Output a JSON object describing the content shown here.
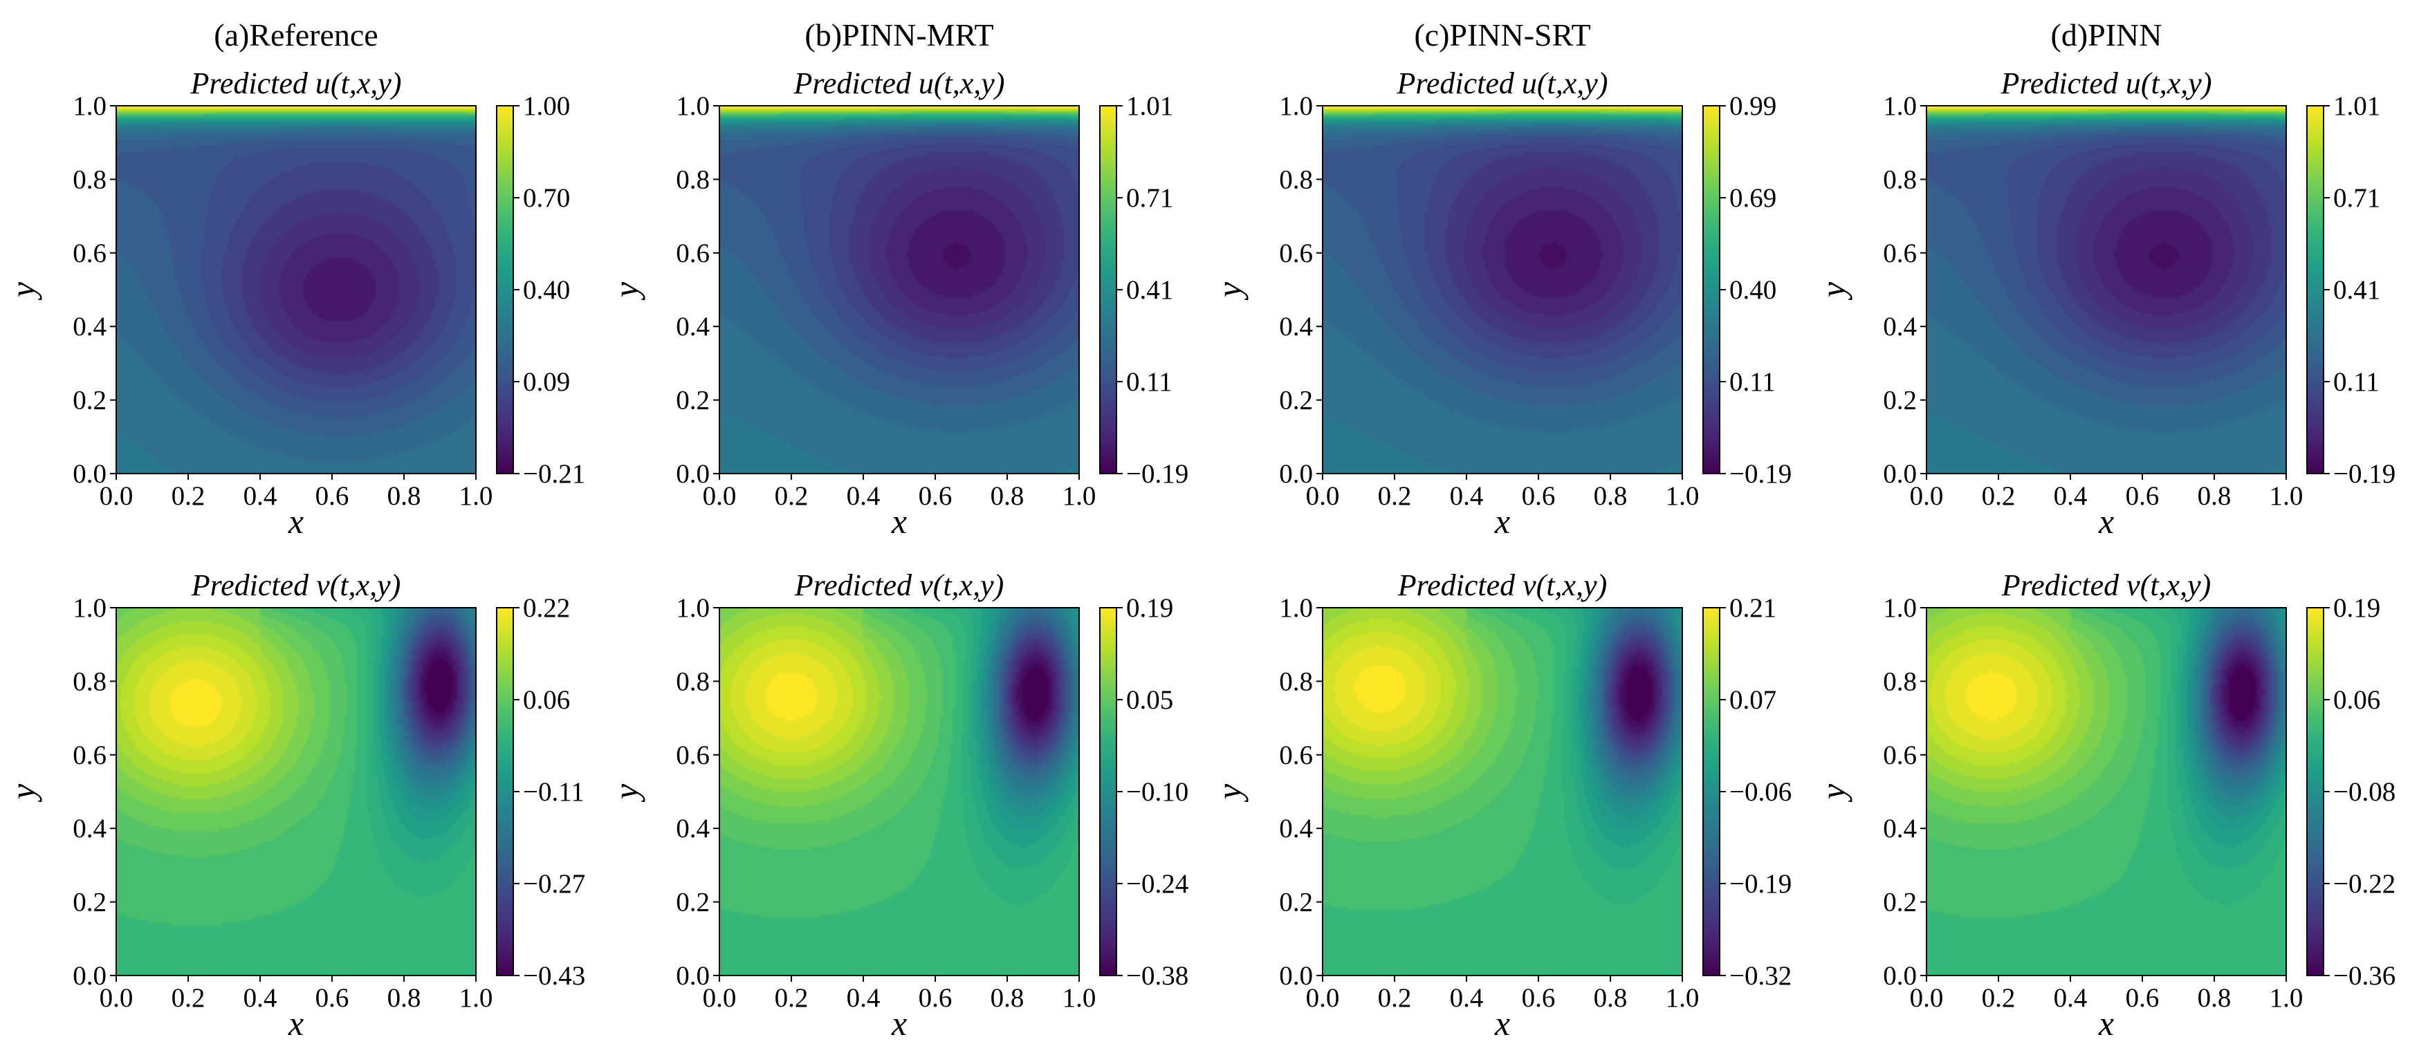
{
  "chart_data": [
    {
      "type": "heatmap",
      "column": "(a)Reference",
      "title": "Predicted u(t,x,y)",
      "field": "u",
      "xlabel": "x",
      "ylabel": "y",
      "xlim": [
        0.0,
        1.0
      ],
      "ylim": [
        0.0,
        1.0
      ],
      "xticks": [
        "0.0",
        "0.2",
        "0.4",
        "0.6",
        "0.8",
        "1.0"
      ],
      "yticks": [
        "0.0",
        "0.2",
        "0.4",
        "0.6",
        "0.8",
        "1.0"
      ],
      "colorbar": {
        "colormap": "viridis",
        "min": -0.21,
        "max": 1.0,
        "ticks": [
          "−0.21",
          "0.09",
          "0.40",
          "0.70",
          "1.00"
        ]
      },
      "features": [
        {
          "kind": "min",
          "x": 0.62,
          "y": 0.47
        }
      ]
    },
    {
      "type": "heatmap",
      "column": "(b)PINN-MRT",
      "title": "Predicted u(t,x,y)",
      "field": "u",
      "xlabel": "x",
      "ylabel": "y",
      "xlim": [
        0.0,
        1.0
      ],
      "ylim": [
        0.0,
        1.0
      ],
      "xticks": [
        "0.0",
        "0.2",
        "0.4",
        "0.6",
        "0.8",
        "1.0"
      ],
      "yticks": [
        "0.0",
        "0.2",
        "0.4",
        "0.6",
        "0.8",
        "1.0"
      ],
      "colorbar": {
        "colormap": "viridis",
        "min": -0.19,
        "max": 1.01,
        "ticks": [
          "−0.19",
          "0.11",
          "0.41",
          "0.71",
          "1.01"
        ]
      },
      "features": [
        {
          "kind": "min",
          "x": 0.66,
          "y": 0.56
        }
      ]
    },
    {
      "type": "heatmap",
      "column": "(c)PINN-SRT",
      "title": "Predicted u(t,x,y)",
      "field": "u",
      "xlabel": "x",
      "ylabel": "y",
      "xlim": [
        0.0,
        1.0
      ],
      "ylim": [
        0.0,
        1.0
      ],
      "xticks": [
        "0.0",
        "0.2",
        "0.4",
        "0.6",
        "0.8",
        "1.0"
      ],
      "yticks": [
        "0.0",
        "0.2",
        "0.4",
        "0.6",
        "0.8",
        "1.0"
      ],
      "colorbar": {
        "colormap": "viridis",
        "min": -0.19,
        "max": 0.99,
        "ticks": [
          "−0.19",
          "0.11",
          "0.40",
          "0.69",
          "0.99"
        ]
      },
      "features": [
        {
          "kind": "min",
          "x": 0.64,
          "y": 0.56
        }
      ]
    },
    {
      "type": "heatmap",
      "column": "(d)PINN",
      "title": "Predicted u(t,x,y)",
      "field": "u",
      "xlabel": "x",
      "ylabel": "y",
      "xlim": [
        0.0,
        1.0
      ],
      "ylim": [
        0.0,
        1.0
      ],
      "xticks": [
        "0.0",
        "0.2",
        "0.4",
        "0.6",
        "0.8",
        "1.0"
      ],
      "yticks": [
        "0.0",
        "0.2",
        "0.4",
        "0.6",
        "0.8",
        "1.0"
      ],
      "colorbar": {
        "colormap": "viridis",
        "min": -0.19,
        "max": 1.01,
        "ticks": [
          "−0.19",
          "0.11",
          "0.41",
          "0.71",
          "1.01"
        ]
      },
      "features": [
        {
          "kind": "min",
          "x": 0.66,
          "y": 0.56
        }
      ]
    },
    {
      "type": "heatmap",
      "column": "(a)Reference",
      "title": "Predicted v(t,x,y)",
      "field": "v",
      "xlabel": "x",
      "ylabel": "y",
      "xlim": [
        0.0,
        1.0
      ],
      "ylim": [
        0.0,
        1.0
      ],
      "xticks": [
        "0.0",
        "0.2",
        "0.4",
        "0.6",
        "0.8",
        "1.0"
      ],
      "yticks": [
        "0.0",
        "0.2",
        "0.4",
        "0.6",
        "0.8",
        "1.0"
      ],
      "colorbar": {
        "colormap": "viridis",
        "min": -0.43,
        "max": 0.22,
        "ticks": [
          "−0.43",
          "−0.27",
          "−0.11",
          "0.06",
          "0.22"
        ]
      },
      "features": [
        {
          "kind": "max",
          "x": 0.22,
          "y": 0.74
        },
        {
          "kind": "min",
          "x": 0.9,
          "y": 0.8
        }
      ]
    },
    {
      "type": "heatmap",
      "column": "(b)PINN-MRT",
      "title": "Predicted v(t,x,y)",
      "field": "v",
      "xlabel": "x",
      "ylabel": "y",
      "xlim": [
        0.0,
        1.0
      ],
      "ylim": [
        0.0,
        1.0
      ],
      "xticks": [
        "0.0",
        "0.2",
        "0.4",
        "0.6",
        "0.8",
        "1.0"
      ],
      "yticks": [
        "0.0",
        "0.2",
        "0.4",
        "0.6",
        "0.8",
        "1.0"
      ],
      "colorbar": {
        "colormap": "viridis",
        "min": -0.38,
        "max": 0.19,
        "ticks": [
          "−0.38",
          "−0.24",
          "−0.10",
          "0.05",
          "0.19"
        ]
      },
      "features": [
        {
          "kind": "max",
          "x": 0.2,
          "y": 0.76
        },
        {
          "kind": "min",
          "x": 0.88,
          "y": 0.78
        }
      ]
    },
    {
      "type": "heatmap",
      "column": "(c)PINN-SRT",
      "title": "Predicted v(t,x,y)",
      "field": "v",
      "xlabel": "x",
      "ylabel": "y",
      "xlim": [
        0.0,
        1.0
      ],
      "ylim": [
        0.0,
        1.0
      ],
      "xticks": [
        "0.0",
        "0.2",
        "0.4",
        "0.6",
        "0.8",
        "1.0"
      ],
      "yticks": [
        "0.0",
        "0.2",
        "0.4",
        "0.6",
        "0.8",
        "1.0"
      ],
      "colorbar": {
        "colormap": "viridis",
        "min": -0.32,
        "max": 0.21,
        "ticks": [
          "−0.32",
          "−0.19",
          "−0.06",
          "0.07",
          "0.21"
        ]
      },
      "features": [
        {
          "kind": "max",
          "x": 0.16,
          "y": 0.78
        },
        {
          "kind": "min",
          "x": 0.88,
          "y": 0.78
        }
      ]
    },
    {
      "type": "heatmap",
      "column": "(d)PINN",
      "title": "Predicted v(t,x,y)",
      "field": "v",
      "xlabel": "x",
      "ylabel": "y",
      "xlim": [
        0.0,
        1.0
      ],
      "ylim": [
        0.0,
        1.0
      ],
      "xticks": [
        "0.0",
        "0.2",
        "0.4",
        "0.6",
        "0.8",
        "1.0"
      ],
      "yticks": [
        "0.0",
        "0.2",
        "0.4",
        "0.6",
        "0.8",
        "1.0"
      ],
      "colorbar": {
        "colormap": "viridis",
        "min": -0.36,
        "max": 0.19,
        "ticks": [
          "−0.36",
          "−0.22",
          "−0.08",
          "0.06",
          "0.19"
        ]
      },
      "features": [
        {
          "kind": "max",
          "x": 0.18,
          "y": 0.76
        },
        {
          "kind": "min",
          "x": 0.88,
          "y": 0.78
        }
      ]
    }
  ]
}
